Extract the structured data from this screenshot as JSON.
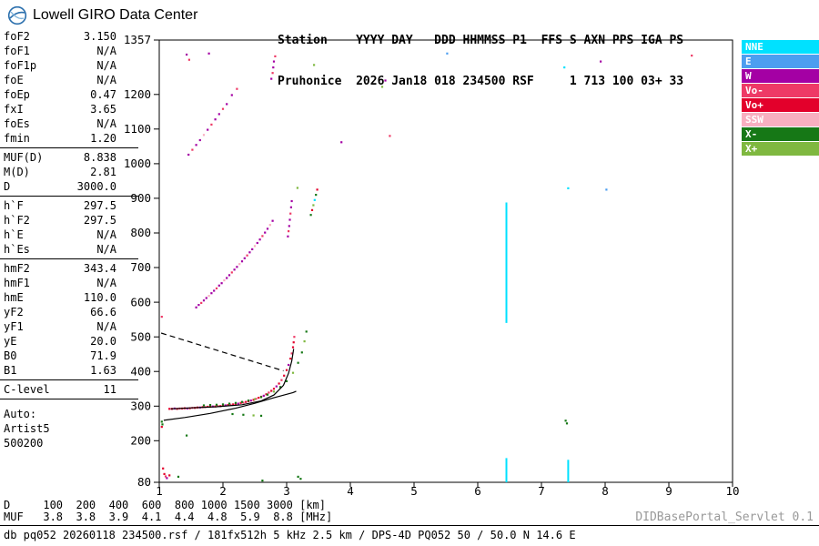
{
  "branding": {
    "title": "Lowell GIRO Data Center"
  },
  "header": {
    "line1": "Station    YYYY DAY   DDD HHMMSS P1  FFS S AXN PPS IGA PS",
    "line2": "Pruhonice  2026 Jan18 018 234500 RSF     1 713 100 03+ 33"
  },
  "sidebar": {
    "groups": [
      {
        "rows": [
          [
            "foF2",
            "3.150"
          ],
          [
            "foF1",
            "N/A"
          ],
          [
            "foF1p",
            "N/A"
          ],
          [
            "foE",
            "N/A"
          ],
          [
            "foEp",
            "0.47"
          ],
          [
            "fxI",
            "3.65"
          ],
          [
            "foEs",
            "N/A"
          ],
          [
            "fmin",
            "1.20"
          ]
        ]
      },
      {
        "rows": [
          [
            "MUF(D)",
            "8.838"
          ],
          [
            "M(D)",
            "2.81"
          ],
          [
            "D",
            "3000.0"
          ]
        ]
      },
      {
        "rows": [
          [
            "h`F",
            "297.5"
          ],
          [
            "h`F2",
            "297.5"
          ],
          [
            "h`E",
            "N/A"
          ],
          [
            "h`Es",
            "N/A"
          ]
        ]
      },
      {
        "rows": [
          [
            "hmF2",
            "343.4"
          ],
          [
            "hmF1",
            "N/A"
          ],
          [
            "hmE",
            "110.0"
          ],
          [
            "yF2",
            "66.6"
          ],
          [
            "yF1",
            "N/A"
          ],
          [
            "yE",
            "20.0"
          ],
          [
            "B0",
            "71.9"
          ],
          [
            "B1",
            "1.63"
          ]
        ]
      },
      {
        "rows": [
          [
            "C-level",
            "11"
          ]
        ]
      }
    ],
    "auto_lines": [
      "Auto:",
      "Artist5",
      "500200"
    ]
  },
  "legend": {
    "items": [
      {
        "name": "legend-item-nne",
        "label": "NNE",
        "color": "#00E1FF"
      },
      {
        "name": "legend-item-e",
        "label": "E",
        "color": "#4C9EF0"
      },
      {
        "name": "legend-item-w",
        "label": "W",
        "color": "#A400A4"
      },
      {
        "name": "legend-item-vo-minus",
        "label": "Vo-",
        "color": "#EE3A66"
      },
      {
        "name": "legend-item-vo-plus",
        "label": "Vo+",
        "color": "#E3002B"
      },
      {
        "name": "legend-item-ssw",
        "label": "SSW",
        "color": "#F8AFC0"
      },
      {
        "name": "legend-item-x-minus",
        "label": "X-",
        "color": "#167816"
      },
      {
        "name": "legend-item-x-plus",
        "label": "X+",
        "color": "#7FB840"
      }
    ]
  },
  "chart_data": {
    "type": "scatter",
    "title": "Pruhonice ionogram 2026 Jan18 018 234500 RSF",
    "xlabel": "[MHz]",
    "ylabel": "[km]",
    "xlim": [
      1,
      10
    ],
    "ylim": [
      80,
      1357
    ],
    "grid": false,
    "x_ticks": [
      1,
      2,
      3,
      4,
      5,
      6,
      7,
      8,
      9,
      10
    ],
    "y_ticks": [
      1357,
      1200,
      1100,
      1000,
      900,
      800,
      700,
      600,
      500,
      400,
      300,
      200,
      80
    ],
    "echoes": [
      [
        1.16,
        292,
        "Vo+"
      ],
      [
        1.2,
        292,
        "Vo+"
      ],
      [
        1.24,
        293,
        "W"
      ],
      [
        1.28,
        292,
        "Vo+"
      ],
      [
        1.32,
        293,
        "Vo-"
      ],
      [
        1.36,
        293,
        "Vo+"
      ],
      [
        1.4,
        294,
        "Vo+"
      ],
      [
        1.44,
        293,
        "W"
      ],
      [
        1.48,
        294,
        "Vo+"
      ],
      [
        1.52,
        295,
        "Vo-"
      ],
      [
        1.56,
        295,
        "Vo+"
      ],
      [
        1.6,
        296,
        "Vo+"
      ],
      [
        1.64,
        296,
        "W"
      ],
      [
        1.68,
        297,
        "Vo+"
      ],
      [
        1.72,
        297,
        "Vo-"
      ],
      [
        1.76,
        298,
        "Vo+"
      ],
      [
        1.8,
        298,
        "Vo+"
      ],
      [
        1.84,
        299,
        "W"
      ],
      [
        1.88,
        299,
        "Vo+"
      ],
      [
        1.92,
        300,
        "Vo-"
      ],
      [
        1.96,
        300,
        "Vo+"
      ],
      [
        2.0,
        301,
        "Vo+"
      ],
      [
        2.04,
        302,
        "W"
      ],
      [
        2.08,
        303,
        "Vo+"
      ],
      [
        2.12,
        304,
        "Vo-"
      ],
      [
        2.16,
        305,
        "Vo+"
      ],
      [
        2.2,
        306,
        "Vo+"
      ],
      [
        2.24,
        307,
        "W"
      ],
      [
        2.28,
        309,
        "Vo+"
      ],
      [
        2.32,
        310,
        "Vo-"
      ],
      [
        2.36,
        312,
        "Vo+"
      ],
      [
        2.4,
        314,
        "Vo+"
      ],
      [
        2.44,
        316,
        "W"
      ],
      [
        2.48,
        318,
        "Vo+"
      ],
      [
        2.52,
        321,
        "Vo-"
      ],
      [
        2.56,
        324,
        "Vo+"
      ],
      [
        2.6,
        327,
        "Vo+"
      ],
      [
        2.64,
        330,
        "W"
      ],
      [
        2.68,
        334,
        "Vo+"
      ],
      [
        2.72,
        339,
        "Vo-"
      ],
      [
        2.76,
        344,
        "Vo+"
      ],
      [
        2.8,
        350,
        "Vo+"
      ],
      [
        2.84,
        357,
        "W"
      ],
      [
        2.88,
        365,
        "Vo+"
      ],
      [
        2.92,
        375,
        "Vo-"
      ],
      [
        2.96,
        388,
        "Vo+"
      ],
      [
        3.0,
        404,
        "Vo+"
      ],
      [
        3.03,
        419,
        "W"
      ],
      [
        3.06,
        437,
        "Vo+"
      ],
      [
        3.08,
        452,
        "Vo-"
      ],
      [
        3.1,
        470,
        "Vo+"
      ],
      [
        3.11,
        484,
        "Vo+"
      ],
      [
        3.12,
        500,
        "Vo-"
      ],
      [
        1.7,
        302,
        "X-"
      ],
      [
        1.8,
        303,
        "X-"
      ],
      [
        1.9,
        304,
        "X-"
      ],
      [
        2.0,
        305,
        "X-"
      ],
      [
        2.1,
        307,
        "X-"
      ],
      [
        2.2,
        309,
        "X-"
      ],
      [
        2.3,
        312,
        "X-"
      ],
      [
        2.4,
        316,
        "X-"
      ],
      [
        2.5,
        320,
        "X+"
      ],
      [
        2.6,
        326,
        "X-"
      ],
      [
        2.7,
        333,
        "X-"
      ],
      [
        2.8,
        342,
        "X+"
      ],
      [
        2.9,
        355,
        "X-"
      ],
      [
        3.0,
        372,
        "X-"
      ],
      [
        3.1,
        396,
        "X+"
      ],
      [
        3.18,
        425,
        "X-"
      ],
      [
        3.24,
        455,
        "X-"
      ],
      [
        3.28,
        487,
        "X+"
      ],
      [
        3.31,
        515,
        "X-"
      ],
      [
        2.15,
        277,
        "X-"
      ],
      [
        2.32,
        275,
        "X-"
      ],
      [
        2.48,
        273,
        "X+"
      ],
      [
        2.6,
        272,
        "X-"
      ],
      [
        1.58,
        585,
        "W"
      ],
      [
        1.62,
        592,
        "W"
      ],
      [
        1.66,
        598,
        "Vo-"
      ],
      [
        1.7,
        605,
        "W"
      ],
      [
        1.74,
        612,
        "W"
      ],
      [
        1.78,
        618,
        "SSW"
      ],
      [
        1.82,
        626,
        "W"
      ],
      [
        1.86,
        633,
        "W"
      ],
      [
        1.9,
        640,
        "Vo-"
      ],
      [
        1.94,
        648,
        "W"
      ],
      [
        1.98,
        655,
        "W"
      ],
      [
        2.02,
        663,
        "SSW"
      ],
      [
        2.06,
        670,
        "W"
      ],
      [
        2.1,
        678,
        "W"
      ],
      [
        2.14,
        686,
        "Vo-"
      ],
      [
        2.18,
        694,
        "W"
      ],
      [
        2.22,
        702,
        "W"
      ],
      [
        2.26,
        710,
        "SSW"
      ],
      [
        2.3,
        718,
        "W"
      ],
      [
        2.34,
        727,
        "W"
      ],
      [
        2.38,
        735,
        "Vo-"
      ],
      [
        2.42,
        744,
        "W"
      ],
      [
        2.46,
        753,
        "W"
      ],
      [
        2.5,
        762,
        "SSW"
      ],
      [
        2.54,
        771,
        "W"
      ],
      [
        2.58,
        781,
        "W"
      ],
      [
        2.62,
        791,
        "Vo-"
      ],
      [
        2.66,
        801,
        "W"
      ],
      [
        2.7,
        812,
        "W"
      ],
      [
        2.74,
        823,
        "SSW"
      ],
      [
        2.78,
        835,
        "W"
      ],
      [
        3.02,
        790,
        "W"
      ],
      [
        3.03,
        805,
        "Vo-"
      ],
      [
        3.04,
        820,
        "W"
      ],
      [
        3.05,
        838,
        "W"
      ],
      [
        3.06,
        856,
        "Vo-"
      ],
      [
        3.07,
        874,
        "W"
      ],
      [
        3.08,
        892,
        "W"
      ],
      [
        3.38,
        852,
        "X-"
      ],
      [
        3.4,
        866,
        "Vo+"
      ],
      [
        3.42,
        880,
        "X+"
      ],
      [
        3.44,
        895,
        "NNE"
      ],
      [
        3.46,
        910,
        "X-"
      ],
      [
        3.48,
        925,
        "Vo+"
      ],
      [
        1.46,
        1026,
        "W"
      ],
      [
        1.52,
        1040,
        "Vo-"
      ],
      [
        1.58,
        1054,
        "W"
      ],
      [
        1.64,
        1068,
        "W"
      ],
      [
        1.7,
        1083,
        "SSW"
      ],
      [
        1.76,
        1098,
        "W"
      ],
      [
        1.82,
        1113,
        "Vo-"
      ],
      [
        1.88,
        1128,
        "W"
      ],
      [
        1.94,
        1143,
        "W"
      ],
      [
        2.0,
        1158,
        "Vo-"
      ],
      [
        2.06,
        1172,
        "W"
      ],
      [
        2.14,
        1198,
        "W"
      ],
      [
        2.22,
        1216,
        "Vo-"
      ],
      [
        2.76,
        1245,
        "W"
      ],
      [
        2.78,
        1262,
        "Vo-"
      ],
      [
        2.79,
        1278,
        "W"
      ],
      [
        2.8,
        1295,
        "W"
      ],
      [
        2.82,
        1310,
        "Vo-"
      ],
      [
        1.43,
        1315,
        "W"
      ],
      [
        1.47,
        1300,
        "Vo-"
      ],
      [
        1.78,
        1318,
        "W"
      ],
      [
        3.43,
        1285,
        "X+"
      ],
      [
        4.5,
        1222,
        "X+"
      ],
      [
        4.55,
        1240,
        "W"
      ],
      [
        5.52,
        1318,
        "E"
      ],
      [
        7.36,
        1278,
        "NNE"
      ],
      [
        7.93,
        1295,
        "W"
      ],
      [
        9.36,
        1312,
        "Vo-"
      ],
      [
        3.86,
        1062,
        "W"
      ],
      [
        4.62,
        1080,
        "Vo-"
      ],
      [
        1.06,
        120,
        "Vo+"
      ],
      [
        1.08,
        104,
        "Vo+"
      ],
      [
        1.1,
        97,
        "Vo-"
      ],
      [
        1.12,
        92,
        "W"
      ],
      [
        1.16,
        100,
        "Vo+"
      ],
      [
        1.3,
        96,
        "X-"
      ],
      [
        3.18,
        96,
        "X-"
      ],
      [
        3.22,
        90,
        "X-"
      ],
      [
        2.62,
        85,
        "X-"
      ],
      [
        1.04,
        255,
        "X-"
      ],
      [
        1.05,
        247,
        "X-"
      ],
      [
        1.04,
        240,
        "Vo+"
      ],
      [
        1.04,
        558,
        "Vo-"
      ],
      [
        1.43,
        215,
        "X-"
      ],
      [
        7.42,
        929,
        "NNE"
      ],
      [
        8.02,
        925,
        "E"
      ],
      [
        7.38,
        258,
        "X-"
      ],
      [
        7.4,
        250,
        "X-"
      ],
      [
        3.17,
        930,
        "X+"
      ]
    ],
    "streaks": [
      {
        "f": 6.45,
        "h0": 540,
        "h1": 888,
        "key": "NNE"
      },
      {
        "f": 6.45,
        "h0": 80,
        "h1": 150,
        "key": "NNE"
      },
      {
        "f": 7.42,
        "h0": 80,
        "h1": 145,
        "key": "NNE"
      }
    ],
    "curves": [
      {
        "name": "true-height-profile",
        "style": "solid",
        "points": [
          [
            1.07,
            259
          ],
          [
            1.4,
            267
          ],
          [
            1.8,
            279
          ],
          [
            2.2,
            294
          ],
          [
            2.5,
            308
          ],
          [
            2.8,
            324
          ],
          [
            3.0,
            334
          ],
          [
            3.1,
            339
          ],
          [
            3.15,
            343
          ]
        ]
      },
      {
        "name": "trace-fit",
        "style": "solid",
        "points": [
          [
            1.18,
            292
          ],
          [
            1.5,
            295
          ],
          [
            1.9,
            298
          ],
          [
            2.3,
            304
          ],
          [
            2.6,
            315
          ],
          [
            2.8,
            332
          ],
          [
            2.95,
            360
          ],
          [
            3.03,
            395
          ],
          [
            3.08,
            430
          ],
          [
            3.11,
            465
          ]
        ]
      },
      {
        "name": "muf-transmission-curve",
        "style": "dashed",
        "points": [
          [
            1.03,
            511
          ],
          [
            2.95,
            402
          ]
        ]
      }
    ]
  },
  "footer": {
    "d_label": "D",
    "d_values": [
      "100",
      "200",
      "400",
      "600",
      "800",
      "1000",
      "1500",
      "3000"
    ],
    "d_unit": "[km]",
    "muf_label": "MUF",
    "muf_values": [
      "3.8",
      "3.8",
      "3.9",
      "4.1",
      "4.4",
      "4.8",
      "5.9",
      "8.8"
    ],
    "muf_unit": "[MHz]",
    "status": "db pq052 20260118 234500.rsf / 181fx512h 5 kHz 2.5 km / DPS-4D PQ052 50 / 50.0 N 14.6 E",
    "servlet": "DIDBasePortal_Servlet 0.1"
  }
}
